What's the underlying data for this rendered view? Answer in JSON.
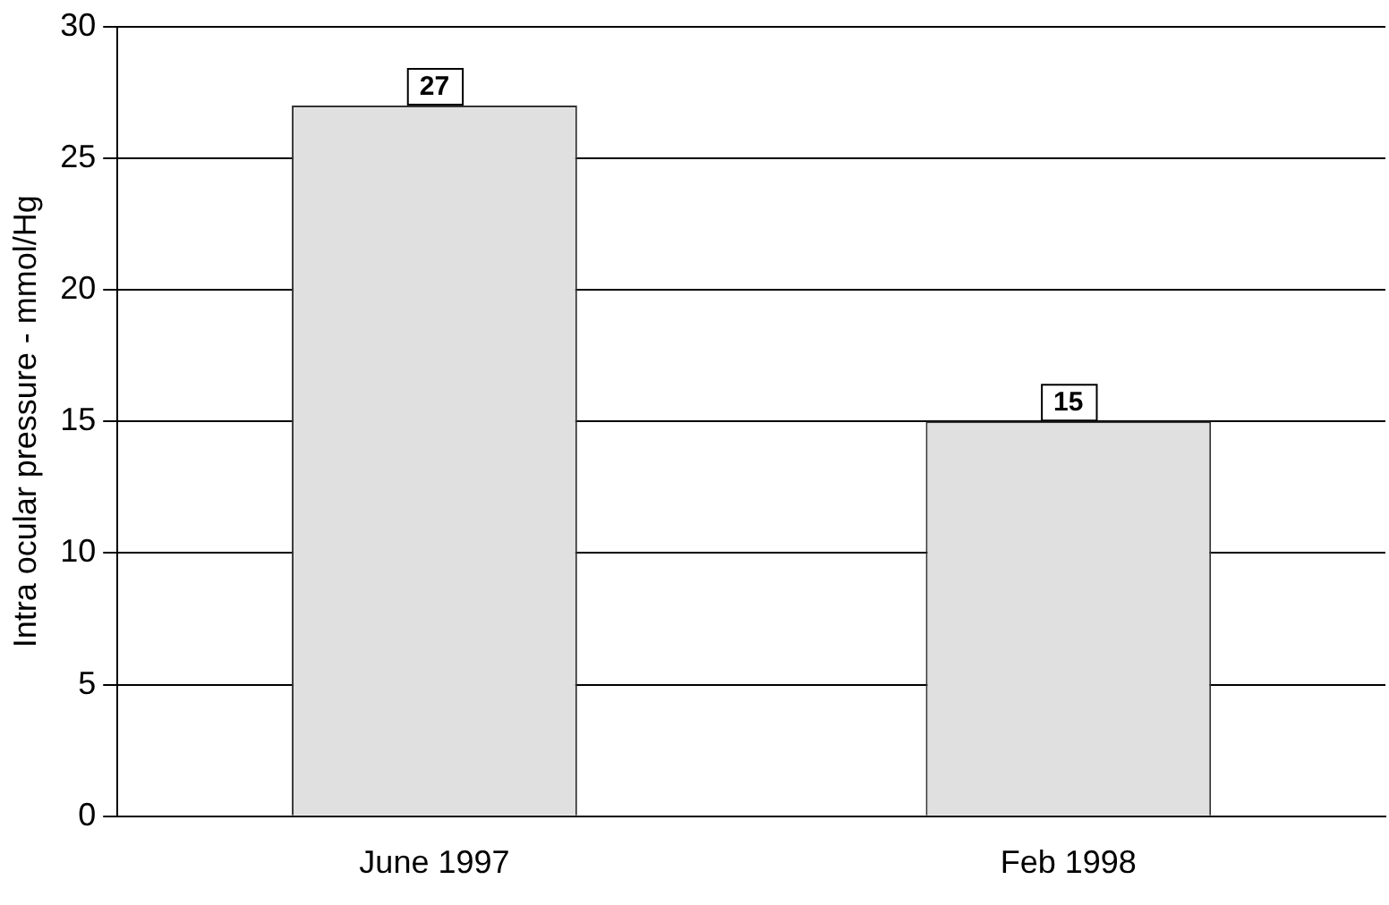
{
  "chart_data": {
    "type": "bar",
    "ylabel": "Intra ocular pressure - mmol/Hg",
    "categories": [
      "June 1997",
      "Feb 1998"
    ],
    "values": [
      27,
      15
    ],
    "color": "#e0e0e0",
    "ylim": [
      0,
      30
    ],
    "yticks": [
      0,
      5,
      10,
      15,
      20,
      25,
      30
    ],
    "grid": "y",
    "data_labels": true
  }
}
